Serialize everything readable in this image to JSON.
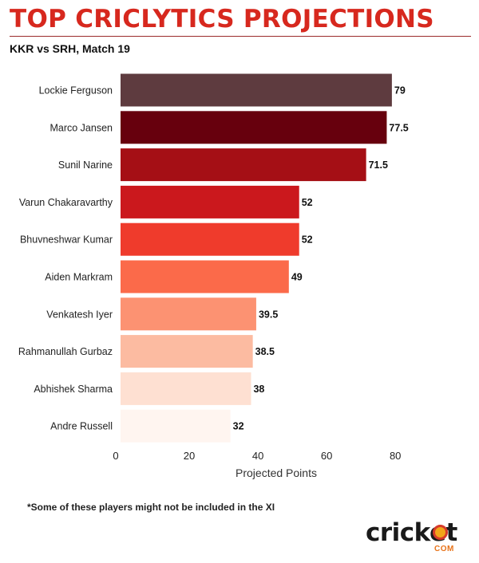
{
  "header": {
    "title": "TOP CRICLYTICS PROJECTIONS",
    "subtitle": "KKR vs SRH, Match 19"
  },
  "footnote": "*Some of these players might not be included in the XI",
  "logo": {
    "word": "cricket",
    "suffix": "COM",
    "dot_color": "#f2a51a"
  },
  "chart_data": {
    "type": "bar",
    "orientation": "horizontal",
    "title": "",
    "xlabel": "Projected Points",
    "ylabel": "",
    "xlim": [
      0,
      86
    ],
    "xticks": [
      0,
      20,
      40,
      60,
      80
    ],
    "grid": false,
    "categories": [
      "Lockie Ferguson",
      "Marco Jansen",
      "Sunil Narine",
      "Varun Chakaravarthy",
      "Bhuvneshwar Kumar",
      "Aiden Markram",
      "Venkatesh Iyer",
      "Rahmanullah Gurbaz",
      "Abhishek Sharma",
      "Andre Russell"
    ],
    "values": [
      79,
      77.5,
      71.5,
      52,
      52,
      49,
      39.5,
      38.5,
      38,
      32
    ],
    "value_labels": [
      "79",
      "77.5",
      "71.5",
      "52",
      "52",
      "49",
      "39.5",
      "38.5",
      "38",
      "32"
    ],
    "colors": [
      "#5e3b3f",
      "#67000d",
      "#a50f15",
      "#cb181d",
      "#ef3b2c",
      "#fb6a4a",
      "#fc9272",
      "#fcbba1",
      "#fee0d2",
      "#fff5f0"
    ]
  }
}
